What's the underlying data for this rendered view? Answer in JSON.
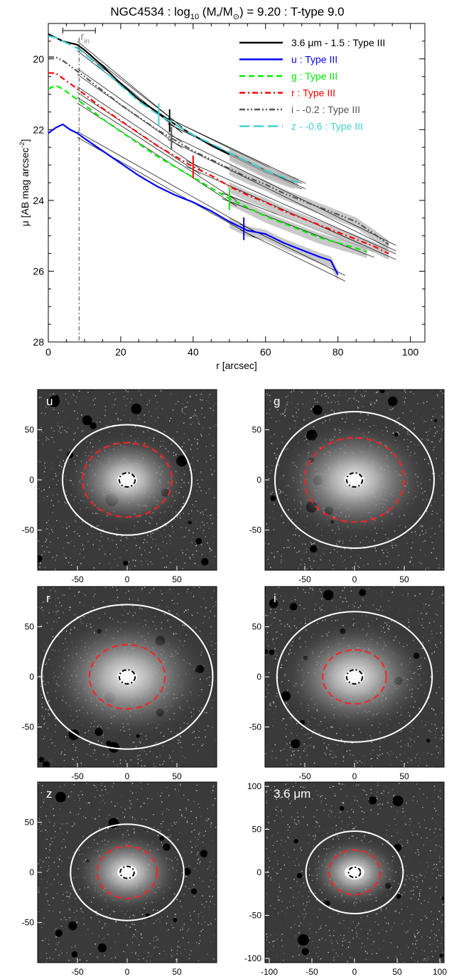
{
  "chart_data": [
    {
      "type": "line",
      "title": "NGC4534 : log",
      "title_sub": "10",
      "title_tail": " (M",
      "title_sub2": "*",
      "title_mid": "/M",
      "title_sub3": "⊙",
      "title_end": ") = 9.20 : T-type 9.0",
      "xlabel": "r [arcsec]",
      "ylabel": "μ [AB mag arcsec",
      "ylabel_sup": "-2",
      "ylabel_end": "]",
      "xlim": [
        0,
        104
      ],
      "ylim": [
        28,
        19
      ],
      "y_reversed": true,
      "xticks": [
        0,
        20,
        40,
        60,
        80,
        100
      ],
      "yticks": [
        20,
        22,
        24,
        26,
        28
      ],
      "r_in": {
        "label": "r",
        "label_sub": "in",
        "value": 8.5,
        "err": [
          4,
          13
        ]
      },
      "series": [
        {
          "name": "3.6 μm - 1.5 : Type III",
          "color": "#000000",
          "dash": "solid",
          "x": [
            0,
            2,
            4,
            6,
            8,
            10,
            15,
            20,
            25,
            30,
            35,
            40,
            45,
            50,
            55,
            60,
            65,
            68
          ],
          "y": [
            19.3,
            19.4,
            19.5,
            19.55,
            19.6,
            19.75,
            20.2,
            20.7,
            21.15,
            21.5,
            21.85,
            22.15,
            22.45,
            22.7,
            22.95,
            23.2,
            23.4,
            23.5
          ],
          "break_r": 33.5
        },
        {
          "name": "u : Type III",
          "color": "#0000ff",
          "dash": "solid",
          "x": [
            0,
            2,
            4,
            6,
            8,
            10,
            15,
            20,
            25,
            30,
            35,
            40,
            45,
            50,
            55,
            60,
            65,
            70,
            75,
            78,
            80
          ],
          "y": [
            22.1,
            21.95,
            21.85,
            22.0,
            22.1,
            22.25,
            22.6,
            22.95,
            23.3,
            23.6,
            23.85,
            24.05,
            24.3,
            24.6,
            24.85,
            24.95,
            25.2,
            25.4,
            25.6,
            25.7,
            26.1
          ],
          "break_r": 54
        },
        {
          "name": "g : Type III",
          "color": "#00ee00",
          "dash": "dash",
          "x": [
            0,
            2,
            4,
            6,
            8,
            10,
            15,
            20,
            25,
            30,
            35,
            40,
            45,
            50,
            55,
            60,
            65,
            70,
            75,
            80,
            85,
            88
          ],
          "y": [
            20.85,
            20.75,
            20.85,
            21.0,
            21.15,
            21.3,
            21.7,
            22.05,
            22.4,
            22.75,
            23.05,
            23.35,
            23.65,
            23.95,
            24.2,
            24.45,
            24.65,
            24.85,
            25.05,
            25.2,
            25.35,
            25.45
          ],
          "break_r": 50
        },
        {
          "name": "r : Type III",
          "color": "#ff0000",
          "dash": "dashdot",
          "x": [
            0,
            2,
            4,
            6,
            8,
            10,
            15,
            20,
            25,
            30,
            35,
            40,
            45,
            50,
            55,
            60,
            65,
            70,
            75,
            80,
            85,
            90,
            94
          ],
          "y": [
            20.4,
            20.4,
            20.55,
            20.7,
            20.85,
            21.0,
            21.4,
            21.75,
            22.1,
            22.45,
            22.75,
            23.05,
            23.3,
            23.6,
            23.85,
            24.05,
            24.3,
            24.5,
            24.7,
            24.9,
            25.1,
            25.3,
            25.5
          ],
          "break_r": 40
        },
        {
          "name": "i - -0.2 : Type III",
          "color": "#555555",
          "dash": "dashdotdot",
          "x": [
            0,
            2,
            4,
            6,
            8,
            10,
            15,
            20,
            25,
            30,
            35,
            40,
            45,
            50,
            55,
            60,
            65,
            70,
            75,
            80,
            85,
            90,
            94
          ],
          "y": [
            19.95,
            19.95,
            20.05,
            20.2,
            20.35,
            20.5,
            20.9,
            21.3,
            21.65,
            22.0,
            22.3,
            22.6,
            22.85,
            23.1,
            23.35,
            23.55,
            23.8,
            24.0,
            24.2,
            24.4,
            24.6,
            24.95,
            25.25
          ],
          "break_r": 34
        },
        {
          "name": "z - -0.6 : Type III",
          "color": "#40d0d0",
          "dash": "longdash",
          "x": [
            0,
            2,
            4,
            6,
            8,
            10,
            15,
            20,
            25,
            30,
            35,
            40,
            45,
            50,
            55,
            60,
            65,
            69
          ],
          "y": [
            19.35,
            19.4,
            19.5,
            19.6,
            19.7,
            19.85,
            20.3,
            20.75,
            21.2,
            21.55,
            21.85,
            22.15,
            22.4,
            22.65,
            22.9,
            23.15,
            23.35,
            23.5
          ],
          "break_r": 30.5
        }
      ]
    },
    {
      "type": "heatmap",
      "panels": [
        {
          "label": "u",
          "xticks": [
            -50,
            0,
            50
          ],
          "yticks": [
            50,
            0,
            -50
          ],
          "range": 90,
          "ellipses": {
            "outer": {
              "a": 65,
              "b": 55
            },
            "mid": {
              "a": 45,
              "b": 37
            },
            "inner": {
              "a": 8,
              "b": 7
            }
          }
        },
        {
          "label": "g",
          "xticks": [
            -50,
            0,
            50
          ],
          "yticks": [
            50,
            0,
            -50
          ],
          "range": 90,
          "ellipses": {
            "outer": {
              "a": 80,
              "b": 68
            },
            "mid": {
              "a": 50,
              "b": 42
            },
            "inner": {
              "a": 8,
              "b": 7
            }
          }
        },
        {
          "label": "r",
          "xticks": [
            -50,
            0,
            50
          ],
          "yticks": [
            50,
            0,
            -50
          ],
          "range": 90,
          "ellipses": {
            "outer": {
              "a": 86,
              "b": 72
            },
            "mid": {
              "a": 38,
              "b": 32
            },
            "inner": {
              "a": 8,
              "b": 7
            }
          }
        },
        {
          "label": "i",
          "xticks": [
            -50,
            0,
            50
          ],
          "yticks": [
            50,
            0,
            -50
          ],
          "range": 90,
          "ellipses": {
            "outer": {
              "a": 78,
              "b": 65
            },
            "mid": {
              "a": 32,
              "b": 27
            },
            "inner": {
              "a": 8,
              "b": 7
            }
          }
        },
        {
          "label": "z",
          "xticks": [
            -50,
            0,
            50
          ],
          "yticks": [
            50,
            0,
            -50
          ],
          "range": 90,
          "ellipses": {
            "outer": {
              "a": 57,
              "b": 48
            },
            "mid": {
              "a": 30,
              "b": 26
            },
            "inner": {
              "a": 7,
              "b": 6
            }
          }
        },
        {
          "label": "3.6 μm",
          "xticks": [
            -100,
            -50,
            0,
            50,
            100
          ],
          "yticks": [
            100,
            50,
            0,
            -50,
            -100
          ],
          "range": 105,
          "ellipses": {
            "outer": {
              "a": 57,
              "b": 48
            },
            "mid": {
              "a": 30,
              "b": 26
            },
            "inner": {
              "a": 7,
              "b": 6
            }
          }
        }
      ]
    }
  ]
}
